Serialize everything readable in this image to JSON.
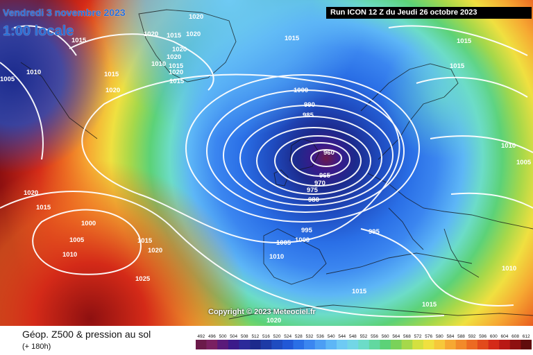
{
  "title": {
    "date": "Vendredi 3 novembre 2023",
    "time": "1:00 locale"
  },
  "run_info": "Run ICON 12 Z du Jeudi 26 octobre 2023",
  "copyright": "Copyright © 2023 Meteociel.fr",
  "parameter": {
    "title": "Géop. Z500 & pression au sol",
    "lead": "(+ 180h)"
  },
  "legend": {
    "values": [
      "492",
      "496",
      "500",
      "504",
      "508",
      "512",
      "516",
      "520",
      "524",
      "528",
      "532",
      "536",
      "540",
      "544",
      "548",
      "552",
      "556",
      "560",
      "564",
      "568",
      "572",
      "576",
      "580",
      "584",
      "588",
      "592",
      "596",
      "600",
      "604",
      "608",
      "612"
    ],
    "colors": [
      "#6b1a4a",
      "#7a2061",
      "#5a1a7a",
      "#3b1a8a",
      "#2c2a9a",
      "#1c2a8c",
      "#1d3aa6",
      "#1f4cc0",
      "#2158d6",
      "#2a6fe6",
      "#3b86f0",
      "#4c9ef4",
      "#5db6f6",
      "#6ecaf4",
      "#72d6e6",
      "#6cdcc8",
      "#62d8a0",
      "#5cd278",
      "#7ad25a",
      "#a6d84a",
      "#d4e040",
      "#f0e040",
      "#f6c83a",
      "#f6a832",
      "#f28a2a",
      "#ec6a22",
      "#e24a1c",
      "#d42a18",
      "#b81814",
      "#8e1010",
      "#600c0c"
    ]
  },
  "pressure_labels": [
    {
      "text": "1020",
      "place": "north-greenland"
    },
    {
      "text": "1015",
      "place": "labrador-sea"
    },
    {
      "text": "1020",
      "place": "greenland-west"
    },
    {
      "text": "1015",
      "place": "greenland-center"
    },
    {
      "text": "1020",
      "place": "greenland-center"
    },
    {
      "text": "1020",
      "place": "greenland-center"
    },
    {
      "text": "1020",
      "place": "greenland-center"
    },
    {
      "text": "1020",
      "place": "greenland-center"
    },
    {
      "text": "1015",
      "place": "greenland-center"
    },
    {
      "text": "1010",
      "place": "greenland-center"
    },
    {
      "text": "1015",
      "place": "denmark-strait"
    },
    {
      "text": "1015",
      "place": "labrador"
    },
    {
      "text": "1020",
      "place": "greenland-south"
    },
    {
      "text": "1010",
      "place": "canada-north"
    },
    {
      "text": "1015",
      "place": "norwegian-sea"
    },
    {
      "text": "1015",
      "place": "barents-sea"
    },
    {
      "text": "1015",
      "place": "scandinavia-north"
    },
    {
      "text": "1010",
      "place": "russia-west"
    },
    {
      "text": "1005",
      "place": "russia-west"
    },
    {
      "text": "1000",
      "place": "iceland"
    },
    {
      "text": "990",
      "place": "low-ring"
    },
    {
      "text": "985",
      "place": "low-ring"
    },
    {
      "text": "960",
      "place": "low-center"
    },
    {
      "text": "965",
      "place": "low-ring"
    },
    {
      "text": "970",
      "place": "low-ring"
    },
    {
      "text": "975",
      "place": "low-ring"
    },
    {
      "text": "980",
      "place": "low-ring"
    },
    {
      "text": "995",
      "place": "biscay"
    },
    {
      "text": "1000",
      "place": "biscay"
    },
    {
      "text": "1005",
      "place": "biscay"
    },
    {
      "text": "1010",
      "place": "iberia"
    },
    {
      "text": "995",
      "place": "france"
    },
    {
      "text": "1015",
      "place": "mediterranean"
    },
    {
      "text": "1020",
      "place": "canada-east"
    },
    {
      "text": "1015",
      "place": "canada-east"
    },
    {
      "text": "1000",
      "place": "atlantic-low"
    },
    {
      "text": "1005",
      "place": "atlantic-low"
    },
    {
      "text": "1010",
      "place": "atlantic-low"
    },
    {
      "text": "1015",
      "place": "mid-atlantic"
    },
    {
      "text": "1020",
      "place": "mid-atlantic"
    },
    {
      "text": "1025",
      "place": "azores"
    },
    {
      "text": "1020",
      "place": "africa-north"
    },
    {
      "text": "1010",
      "place": "turkey"
    },
    {
      "text": "1015",
      "place": "middle-east"
    },
    {
      "text": "1005",
      "place": "west-edge"
    }
  ]
}
